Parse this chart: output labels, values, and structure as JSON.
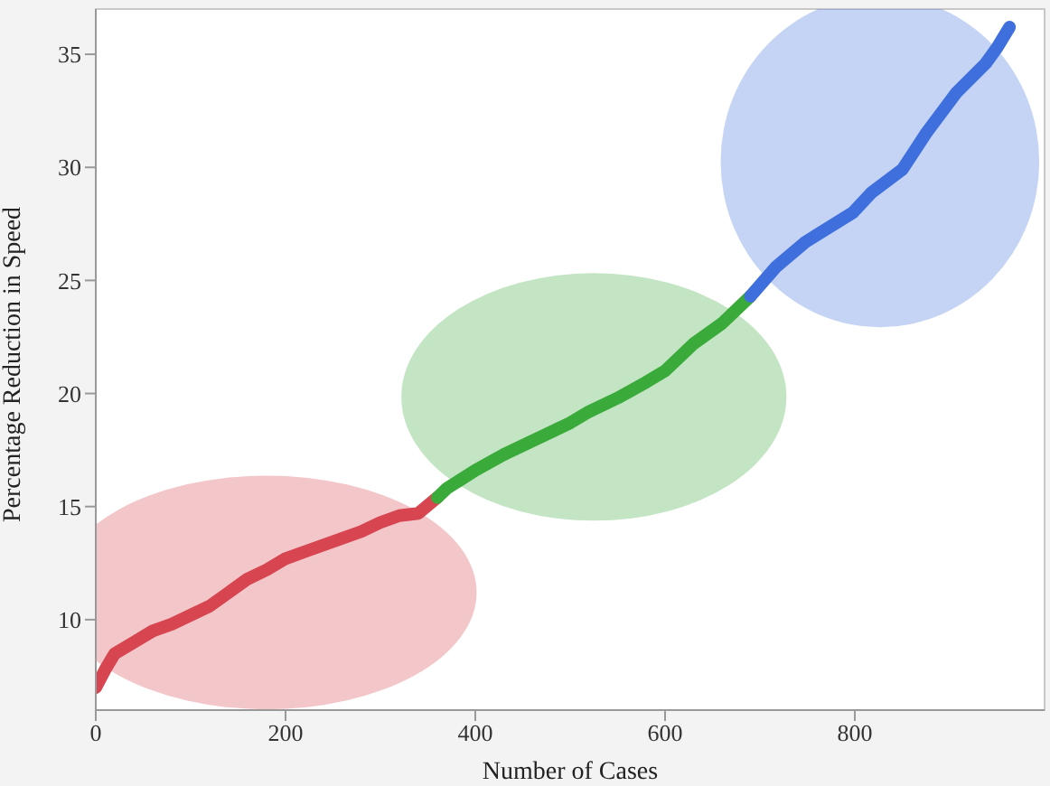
{
  "chart_data": {
    "type": "line",
    "xlabel": "Number of Cases",
    "ylabel": "Percentage Reduction in Speed",
    "xlim": [
      0,
      1000
    ],
    "ylim": [
      6,
      37
    ],
    "xticks": [
      0,
      200,
      400,
      600,
      800
    ],
    "yticks": [
      10,
      15,
      20,
      25,
      30,
      35
    ],
    "marker": "none",
    "line_style": "solid",
    "series": [
      {
        "color": "#d64550",
        "x": [
          0,
          10,
          20,
          40,
          60,
          80,
          100,
          120,
          140,
          160,
          180,
          200,
          220,
          240,
          260,
          280,
          300,
          320,
          340,
          360
        ],
        "values": [
          7.0,
          7.8,
          8.5,
          9.0,
          9.5,
          9.8,
          10.2,
          10.6,
          11.2,
          11.8,
          12.2,
          12.7,
          13.0,
          13.3,
          13.6,
          13.9,
          14.3,
          14.6,
          14.7,
          15.4
        ]
      },
      {
        "color": "#3aaa3a",
        "x": [
          360,
          370,
          400,
          430,
          460,
          500,
          520,
          550,
          580,
          600,
          630,
          660,
          690
        ],
        "values": [
          15.4,
          15.8,
          16.6,
          17.3,
          17.9,
          18.7,
          19.2,
          19.8,
          20.5,
          21.0,
          22.2,
          23.1,
          24.3
        ]
      },
      {
        "color": "#3f6fdc",
        "x": [
          690,
          717,
          748,
          798,
          818,
          850,
          875,
          907,
          938,
          950,
          963
        ],
        "values": [
          24.3,
          25.6,
          26.7,
          28.0,
          28.9,
          29.9,
          31.5,
          33.3,
          34.6,
          35.3,
          36.2
        ]
      }
    ]
  }
}
